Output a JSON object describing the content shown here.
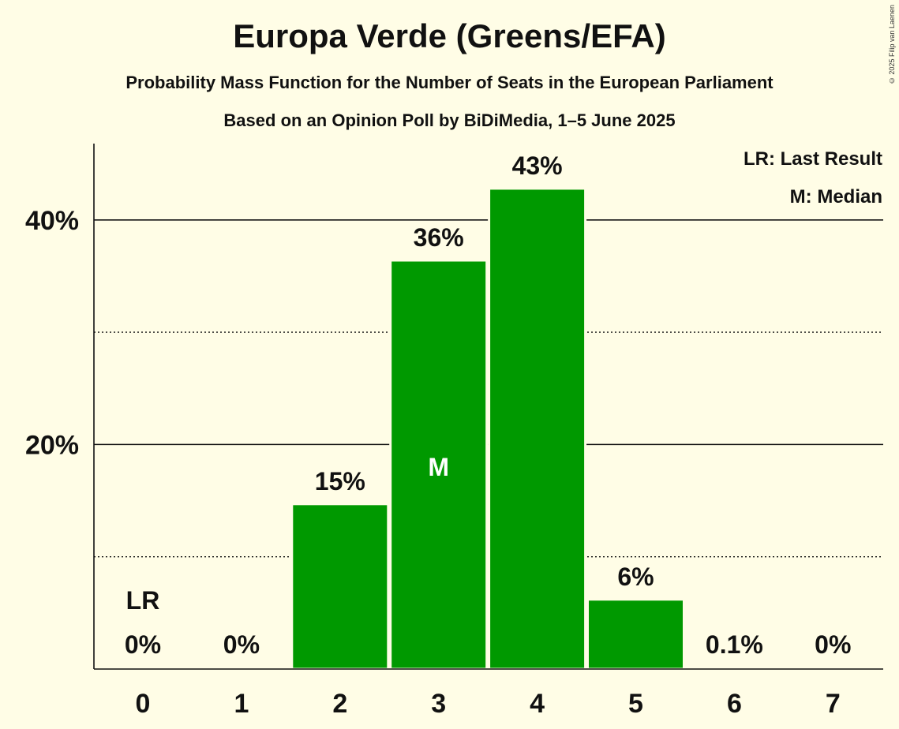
{
  "title": "Europa Verde (Greens/EFA)",
  "subtitle": "Probability Mass Function for the Number of Seats in the European Parliament",
  "subtitle2": "Based on an Opinion Poll by BiDiMedia, 1–5 June 2025",
  "copyright": "© 2025 Filip van Laenen",
  "legend": {
    "last_result": "LR: Last Result",
    "median": "M: Median"
  },
  "colors": {
    "bar": "#009900",
    "background": "#FFFDE6",
    "text": "#111111"
  },
  "chart_data": {
    "type": "bar",
    "categories": [
      "0",
      "1",
      "2",
      "3",
      "4",
      "5",
      "6",
      "7"
    ],
    "values": [
      0,
      0,
      14.7,
      36.4,
      42.8,
      6.2,
      0.1,
      0
    ],
    "data_labels": [
      "0%",
      "0%",
      "15%",
      "36%",
      "43%",
      "6%",
      "0.1%",
      "0%"
    ],
    "y_ticks": [
      20,
      40
    ],
    "y_tick_labels": [
      "20%",
      "40%"
    ],
    "y_minor_ticks": [
      10,
      30
    ],
    "ylim": [
      0,
      46.8
    ],
    "last_result_index": 0,
    "last_result_label": "LR",
    "median_index": 3,
    "median_label": "M"
  }
}
